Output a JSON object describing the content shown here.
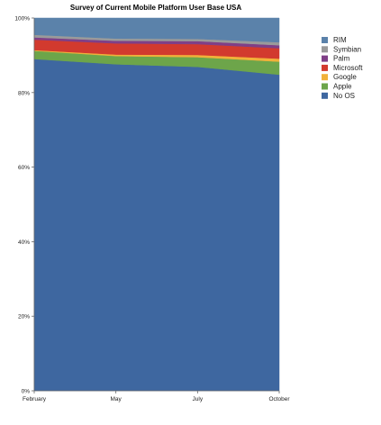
{
  "chart_data": {
    "type": "area",
    "stacked": true,
    "title": "Survey of Current Mobile Platform User Base USA",
    "xlabel": "",
    "ylabel": "",
    "categories": [
      "February",
      "May",
      "July",
      "October"
    ],
    "y_ticks": [
      "0%",
      "20%",
      "40%",
      "60%",
      "80%",
      "100%"
    ],
    "ylim": [
      0,
      100
    ],
    "grid": false,
    "legend_position": "right",
    "series": [
      {
        "name": "No OS",
        "color": "#3e67a0",
        "values": [
          89.0,
          87.6,
          86.9,
          84.8
        ]
      },
      {
        "name": "Apple",
        "color": "#6da54a",
        "values": [
          2.2,
          2.2,
          2.6,
          3.5
        ]
      },
      {
        "name": "Google",
        "color": "#f1b13a",
        "values": [
          0.2,
          0.4,
          0.6,
          0.8
        ]
      },
      {
        "name": "Microsoft",
        "color": "#d23a2e",
        "values": [
          2.8,
          3.0,
          2.9,
          2.8
        ]
      },
      {
        "name": "Palm",
        "color": "#7f3f87",
        "values": [
          0.6,
          0.7,
          0.8,
          0.8
        ]
      },
      {
        "name": "Symbian",
        "color": "#9a9a9a",
        "values": [
          0.7,
          0.6,
          0.6,
          0.8
        ]
      },
      {
        "name": "RIM",
        "color": "#5b82aa",
        "values": [
          4.5,
          5.5,
          5.6,
          6.5
        ]
      }
    ],
    "legend_order": [
      "RIM",
      "Symbian",
      "Palm",
      "Microsoft",
      "Google",
      "Apple",
      "No OS"
    ]
  }
}
